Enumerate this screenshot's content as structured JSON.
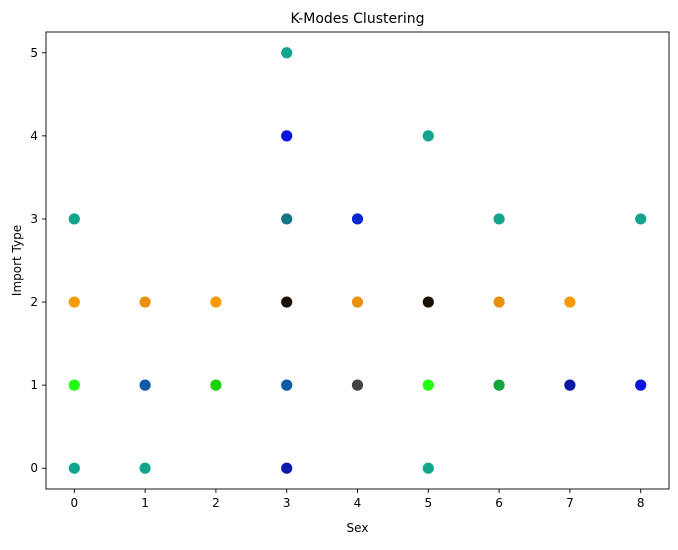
{
  "chart_data": {
    "type": "scatter",
    "title": "K-Modes Clustering",
    "xlabel": "Sex",
    "ylabel": "Import Type",
    "xlim": [
      -0.4,
      8.4
    ],
    "ylim": [
      -0.25,
      5.25
    ],
    "xticks": [
      0,
      1,
      2,
      3,
      4,
      5,
      6,
      7,
      8
    ],
    "yticks": [
      0,
      1,
      2,
      3,
      4,
      5
    ],
    "grid": false,
    "legend": "none",
    "points": [
      {
        "x": 0,
        "y": 0,
        "color": "#14a58e"
      },
      {
        "x": 0,
        "y": 1,
        "color": "#22ff11"
      },
      {
        "x": 0,
        "y": 2,
        "color": "#f79a06"
      },
      {
        "x": 0,
        "y": 3,
        "color": "#14a58e"
      },
      {
        "x": 1,
        "y": 0,
        "color": "#14a58e"
      },
      {
        "x": 1,
        "y": 1,
        "color": "#0e5aa6"
      },
      {
        "x": 1,
        "y": 2,
        "color": "#e9900c"
      },
      {
        "x": 2,
        "y": 1,
        "color": "#1bd10c"
      },
      {
        "x": 2,
        "y": 2,
        "color": "#f79a06"
      },
      {
        "x": 3,
        "y": 0,
        "color": "#0a1ba7"
      },
      {
        "x": 3,
        "y": 1,
        "color": "#0e5aa6"
      },
      {
        "x": 3,
        "y": 2,
        "color": "#1a1103"
      },
      {
        "x": 3,
        "y": 3,
        "color": "#137585"
      },
      {
        "x": 3,
        "y": 4,
        "color": "#0a14e0"
      },
      {
        "x": 3,
        "y": 5,
        "color": "#14a58e"
      },
      {
        "x": 4,
        "y": 1,
        "color": "#434343"
      },
      {
        "x": 4,
        "y": 2,
        "color": "#e9900c"
      },
      {
        "x": 4,
        "y": 3,
        "color": "#0a27cf"
      },
      {
        "x": 5,
        "y": 0,
        "color": "#14a58e"
      },
      {
        "x": 5,
        "y": 1,
        "color": "#22ff11"
      },
      {
        "x": 5,
        "y": 2,
        "color": "#1a1103"
      },
      {
        "x": 5,
        "y": 4,
        "color": "#14a58e"
      },
      {
        "x": 6,
        "y": 1,
        "color": "#11a53b"
      },
      {
        "x": 6,
        "y": 2,
        "color": "#e9900c"
      },
      {
        "x": 6,
        "y": 3,
        "color": "#14a58e"
      },
      {
        "x": 7,
        "y": 1,
        "color": "#0a17a7"
      },
      {
        "x": 7,
        "y": 2,
        "color": "#f79a06"
      },
      {
        "x": 8,
        "y": 1,
        "color": "#0a14e0"
      },
      {
        "x": 8,
        "y": 3,
        "color": "#14a58e"
      }
    ]
  }
}
